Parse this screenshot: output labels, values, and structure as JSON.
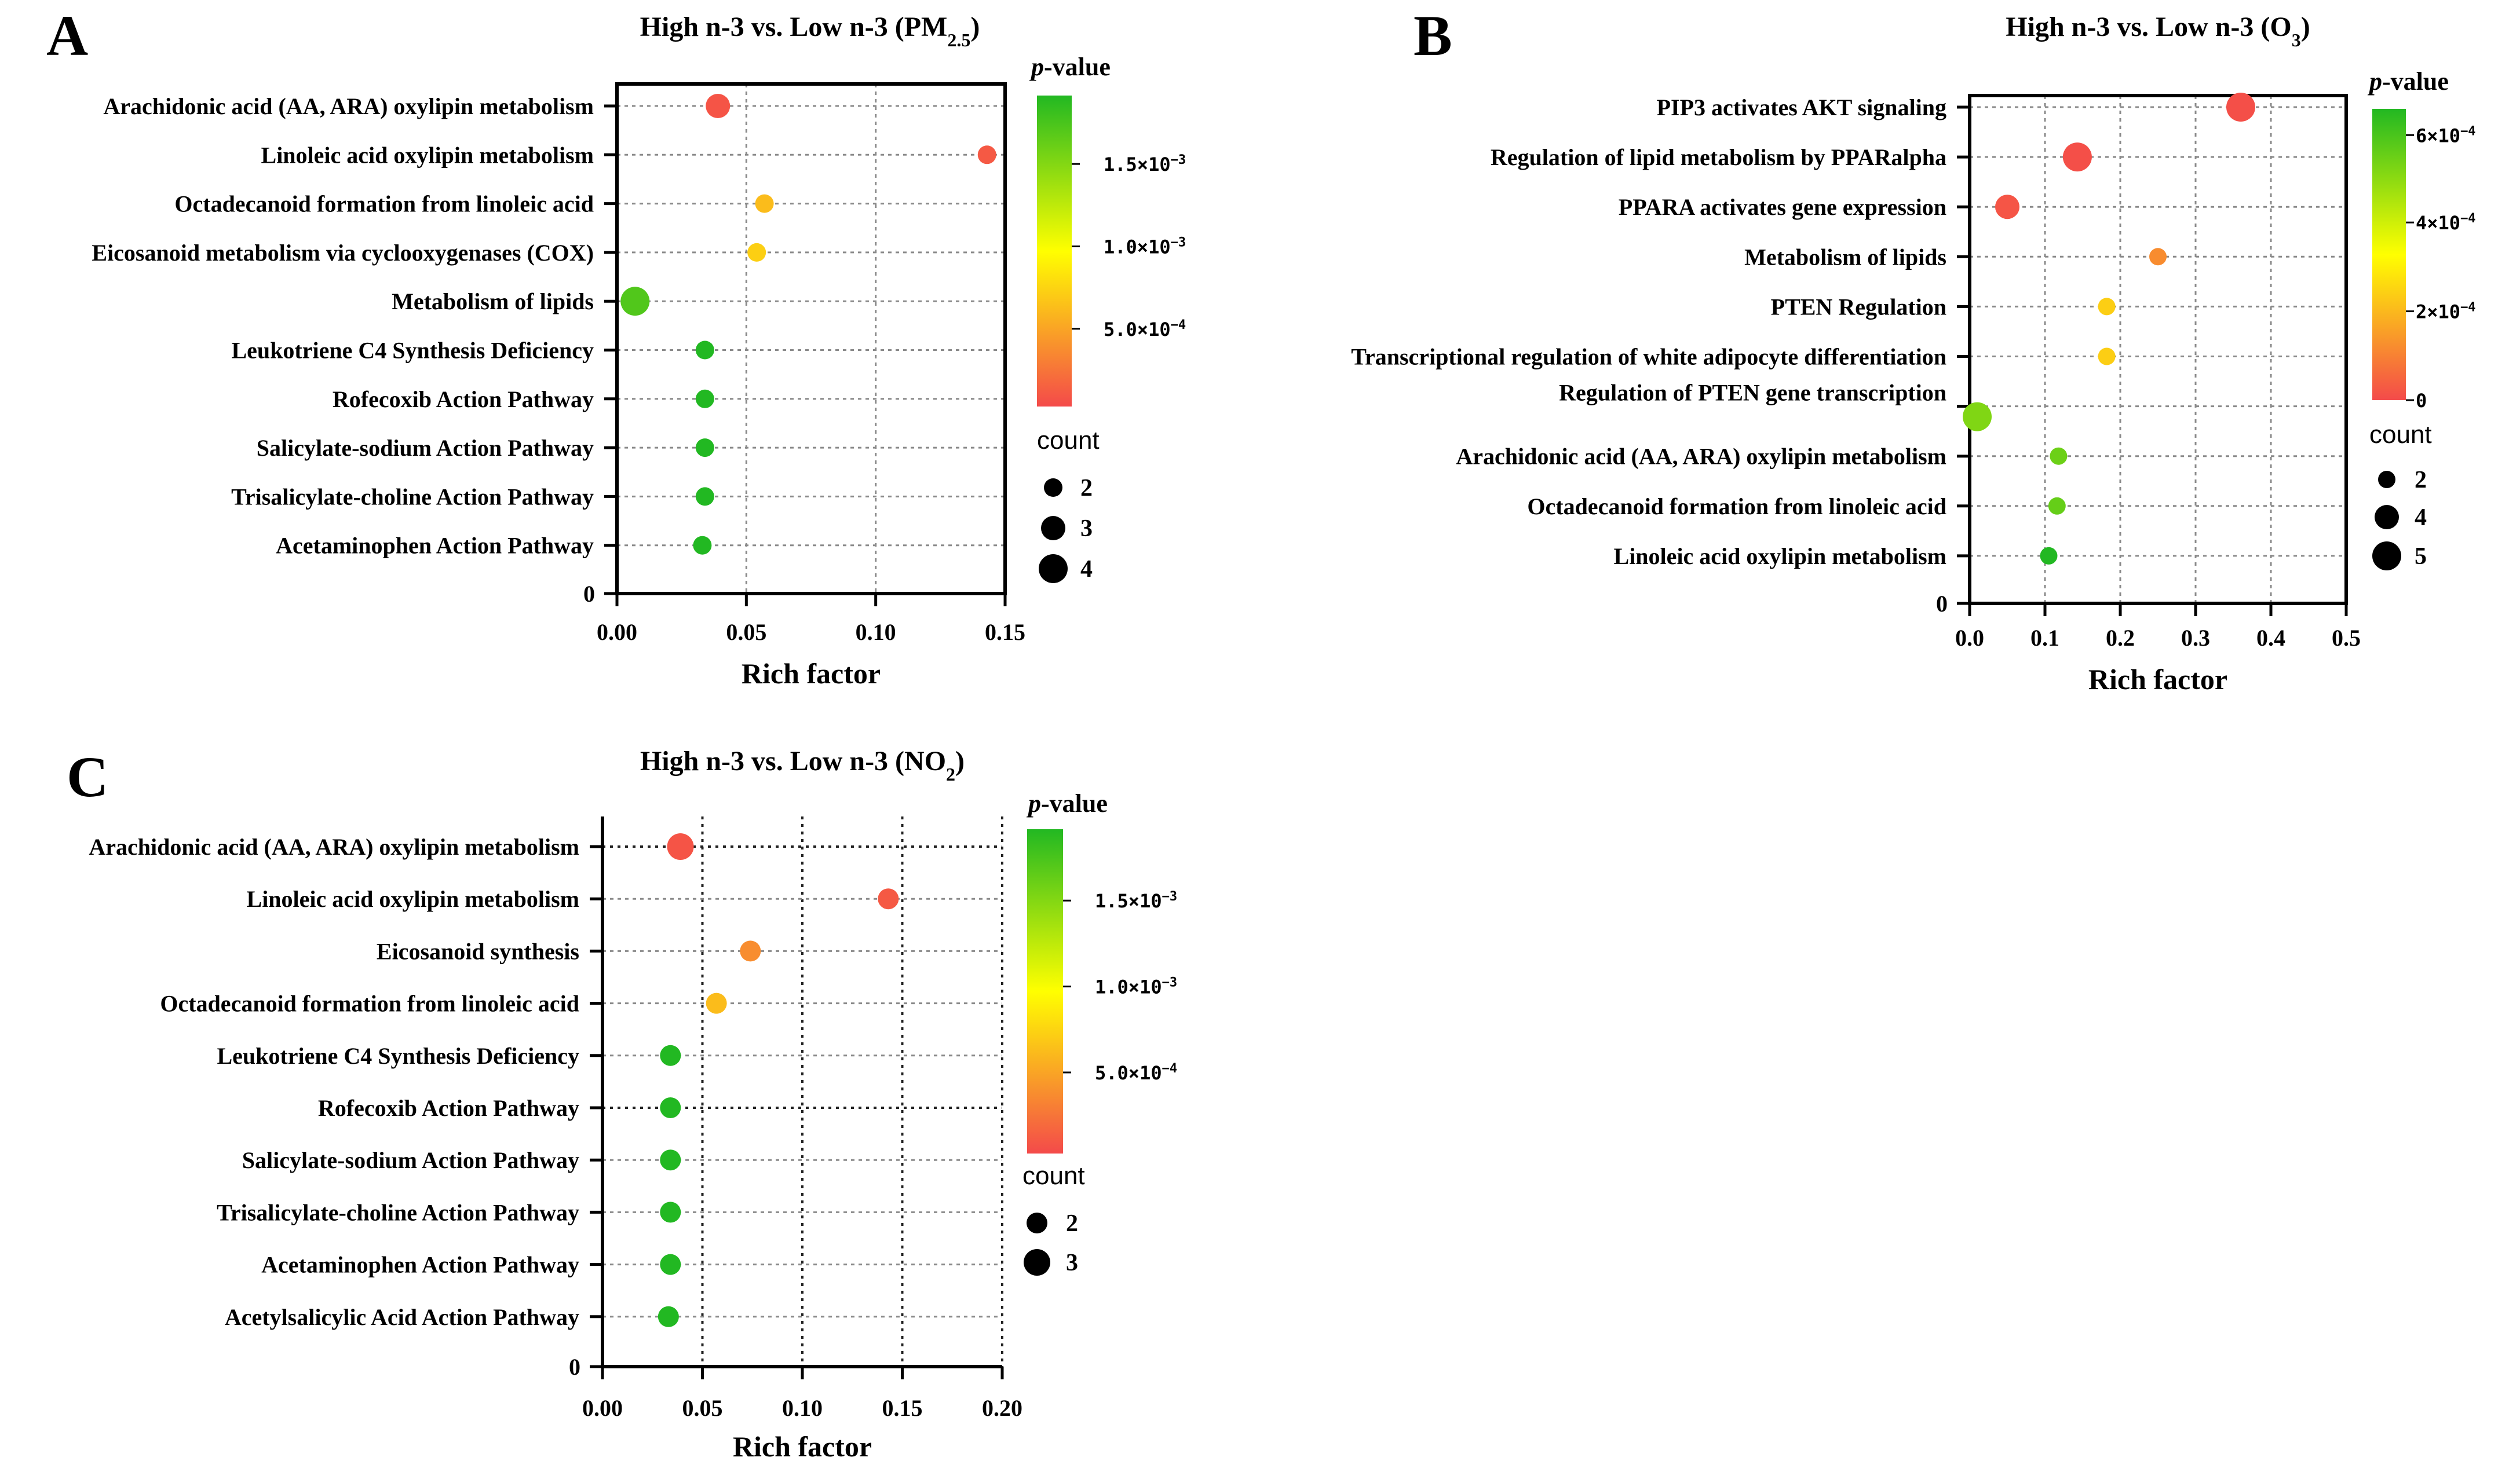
{
  "panels": [
    {
      "letter": "A",
      "title": "High n-3 vs. Low n-3 (PM",
      "title_sub": "2.5",
      "title_end": ")",
      "pvalue_label_italic": "p",
      "pvalue_label_rest": "-value",
      "count_label": "count",
      "legend_ticks": [
        {
          "text": "1.5×10",
          "exp": "−3",
          "frac": 0.78
        },
        {
          "text": "1.0×10",
          "exp": "−3",
          "frac": 0.515
        },
        {
          "text": "5.0×10",
          "exp": "−4",
          "frac": 0.25
        }
      ],
      "count_entries": [
        {
          "label": "2",
          "value": 2
        },
        {
          "label": "3",
          "value": 3
        },
        {
          "label": "4",
          "value": 4
        }
      ],
      "chart_data": {
        "type": "scatter",
        "title": "High n-3 vs. Low n-3 (PM2.5)",
        "xlabel": "Rich factor",
        "ylabel": "",
        "xlim": [
          0,
          0.15
        ],
        "xticks": [
          "0.00",
          "0.05",
          "0.10",
          "0.15"
        ],
        "y_zero_label": "0",
        "colorbar": {
          "label": "p-value",
          "min": 0,
          "max": 0.0019
        },
        "categories": [
          "Arachidonic acid (AA, ARA) oxylipin metabolism",
          "Linoleic acid oxylipin metabolism",
          "Octadecanoid formation from linoleic acid",
          "Eicosanoid metabolism via cyclooxygenases (COX)",
          "Metabolism of lipids",
          "Leukotriene C4 Synthesis Deficiency",
          "Rofecoxib Action Pathway",
          "Salicylate-sodium Action Pathway",
          "Trisalicylate-choline Action Pathway",
          "Acetaminophen Action Pathway"
        ],
        "rich_factor": [
          0.039,
          0.143,
          0.057,
          0.054,
          0.007,
          0.034,
          0.034,
          0.034,
          0.034,
          0.033
        ],
        "count": [
          3,
          2,
          2,
          2,
          4,
          2,
          2,
          2,
          2,
          2
        ],
        "pvalue": [
          5e-05,
          8e-05,
          0.0006,
          0.0007,
          0.0017,
          0.0019,
          0.0019,
          0.0019,
          0.0019,
          0.0019
        ]
      }
    },
    {
      "letter": "B",
      "title": "High n-3 vs. Low n-3 (O",
      "title_sub": "3",
      "title_end": ")",
      "pvalue_label_italic": "p",
      "pvalue_label_rest": "-value",
      "count_label": "count",
      "legend_ticks": [
        {
          "text": "6×10",
          "exp": "−4",
          "frac": 0.91
        },
        {
          "text": "4×10",
          "exp": "−4",
          "frac": 0.61
        },
        {
          "text": "2×10",
          "exp": "−4",
          "frac": 0.305
        },
        {
          "text": "0",
          "exp": "",
          "frac": 0.0
        }
      ],
      "count_entries": [
        {
          "label": "2",
          "value": 2
        },
        {
          "label": "4",
          "value": 4
        },
        {
          "label": "5",
          "value": 5
        }
      ],
      "chart_data": {
        "type": "scatter",
        "title": "High n-3 vs. Low n-3 (O3)",
        "xlabel": "Rich factor",
        "ylabel": "",
        "xlim": [
          0,
          0.5
        ],
        "xticks": [
          "0.0",
          "0.1",
          "0.2",
          "0.3",
          "0.4",
          "0.5"
        ],
        "y_zero_label": "0",
        "colorbar": {
          "label": "p-value",
          "min": 0,
          "max": 0.00066
        },
        "categories": [
          "PIP3 activates AKT signaling",
          "Regulation of lipid metabolism by PPARalpha",
          "PPARA activates gene expression",
          "Metabolism of lipids",
          "PTEN Regulation",
          "Transcriptional regulation of white adipocyte differentiation",
          "Regulation of PTEN gene transcription",
          "Arachidonic acid (AA, ARA) oxylipin metabolism",
          "Octadecanoid formation from linoleic acid",
          "Linoleic acid oxylipin metabolism"
        ],
        "rich_factor": [
          0.36,
          0.143,
          0.05,
          0.25,
          0.182,
          0.182,
          0.01,
          0.118,
          0.116,
          0.105
        ],
        "count": [
          5,
          5,
          4,
          2,
          2,
          2,
          5,
          2,
          2,
          2
        ],
        "pvalue": [
          1e-05,
          1e-05,
          2e-05,
          0.00012,
          0.00024,
          0.00024,
          0.00052,
          0.00055,
          0.00056,
          0.00066
        ]
      }
    },
    {
      "letter": "C",
      "title": "High n-3 vs. Low n-3 (NO",
      "title_sub": "2",
      "title_end": ")",
      "pvalue_label_italic": "p",
      "pvalue_label_rest": "-value",
      "count_label": "count",
      "legend_ticks": [
        {
          "text": "1.5×10",
          "exp": "−3",
          "frac": 0.78
        },
        {
          "text": "1.0×10",
          "exp": "−3",
          "frac": 0.515
        },
        {
          "text": "5.0×10",
          "exp": "−4",
          "frac": 0.25
        }
      ],
      "count_entries": [
        {
          "label": "2",
          "value": 2
        },
        {
          "label": "3",
          "value": 3
        }
      ],
      "chart_data": {
        "type": "scatter",
        "title": "High n-3 vs. Low n-3 (NO2)",
        "xlabel": "Rich factor",
        "ylabel": "",
        "xlim": [
          0,
          0.2
        ],
        "xticks": [
          "0.00",
          "0.05",
          "0.10",
          "0.15",
          "0.20"
        ],
        "y_zero_label": "0",
        "colorbar": {
          "label": "p-value",
          "min": 0,
          "max": 0.0019
        },
        "categories": [
          "Arachidonic acid (AA, ARA) oxylipin metabolism",
          "Linoleic acid oxylipin metabolism",
          "Eicosanoid synthesis",
          "Octadecanoid formation from linoleic acid",
          "Leukotriene C4 Synthesis Deficiency",
          "Rofecoxib Action Pathway",
          "Salicylate-sodium Action Pathway",
          "Trisalicylate-choline Action Pathway",
          "Acetaminophen Action Pathway",
          "Acetylsalicylic Acid Action Pathway"
        ],
        "rich_factor": [
          0.039,
          0.143,
          0.074,
          0.057,
          0.034,
          0.034,
          0.034,
          0.034,
          0.034,
          0.033
        ],
        "count": [
          3,
          2,
          2,
          2,
          2,
          2,
          2,
          2,
          2,
          2
        ],
        "pvalue": [
          5e-05,
          8e-05,
          0.00035,
          0.0006,
          0.0019,
          0.0019,
          0.0019,
          0.0019,
          0.0019,
          0.0019
        ]
      }
    }
  ],
  "colors": {
    "low": "#f44a4a",
    "mid": "#ffff00",
    "high": "#22b822",
    "axis": "#000000"
  }
}
